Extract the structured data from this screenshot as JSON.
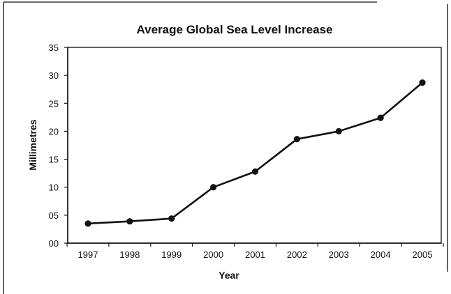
{
  "chart_data": {
    "type": "line",
    "title": "Average Global Sea Level Increase",
    "xlabel": "Year",
    "ylabel": "Millimetres",
    "x": [
      "1997",
      "1998",
      "1999",
      "2000",
      "2001",
      "2002",
      "2003",
      "2004",
      "2005"
    ],
    "y_tick_labels": [
      "00",
      "05",
      "10",
      "15",
      "20",
      "25",
      "30",
      "35"
    ],
    "ylim": [
      0,
      35
    ],
    "grid": false,
    "legend": "none",
    "series": [
      {
        "values": [
          3.5,
          3.9,
          4.4,
          10.0,
          12.8,
          18.6,
          20.0,
          22.4,
          28.7
        ]
      }
    ],
    "colors": {
      "line": "#111111",
      "markers": "#111111",
      "frame": "#3a3a3a",
      "background": "#ffffff"
    }
  }
}
